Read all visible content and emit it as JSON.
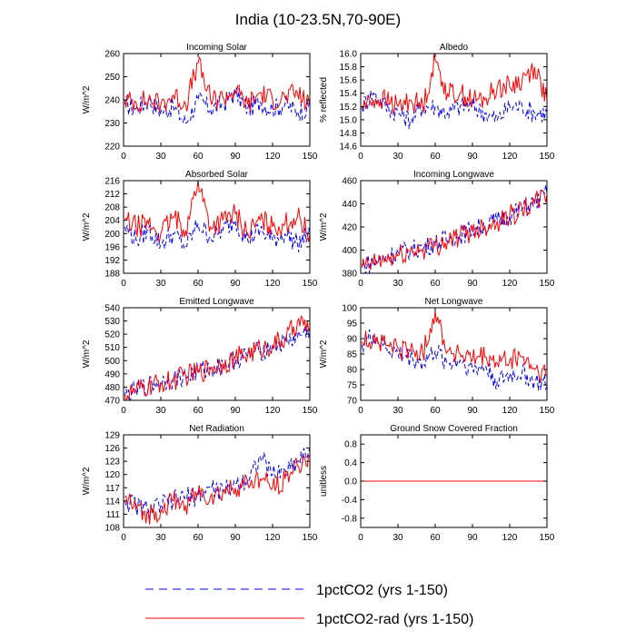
{
  "figure": {
    "title": "India (10-23.5N,70-90E)"
  },
  "series_styles": [
    {
      "name": "1pctCO2 (yrs 1-150)",
      "color": "#0000ff",
      "dash": "dashed"
    },
    {
      "name": "1pctCO2-rad (yrs 1-150)",
      "color": "#ff0000",
      "dash": "solid"
    }
  ],
  "legend": [
    {
      "label": "1pctCO2 (yrs 1-150)",
      "color": "#0000ff",
      "dash": "dashed"
    },
    {
      "label": "1pctCO2-rad (yrs 1-150)",
      "color": "#ff0000",
      "dash": "solid"
    }
  ],
  "chart_data": [
    {
      "type": "line",
      "title": "Incoming Solar",
      "ylabel": "W/m^2",
      "xlim": [
        0,
        150
      ],
      "ylim": [
        220,
        260
      ],
      "xticks": [
        0,
        30,
        60,
        90,
        120,
        150
      ],
      "xtick_labels": [
        "0",
        "30",
        "60",
        "90",
        "120",
        "150"
      ],
      "yticks": [
        220,
        230,
        240,
        250,
        260
      ],
      "ytick_labels": [
        "220",
        "230",
        "240",
        "250",
        "260"
      ],
      "series": [
        {
          "color": "#0000ff",
          "dash": "dashed",
          "x": [
            1,
            10,
            20,
            30,
            40,
            50,
            60,
            70,
            80,
            90,
            100,
            110,
            120,
            130,
            140,
            150
          ],
          "values": [
            238,
            236,
            240,
            235,
            237,
            230,
            240,
            236,
            238,
            243,
            236,
            239,
            236,
            238,
            235,
            236
          ]
        },
        {
          "color": "#ff0000",
          "dash": "solid",
          "x": [
            1,
            10,
            20,
            30,
            40,
            50,
            60,
            70,
            80,
            90,
            100,
            110,
            120,
            130,
            140,
            150
          ],
          "values": [
            240,
            239,
            240,
            238,
            242,
            238,
            256,
            240,
            241,
            244,
            238,
            243,
            240,
            241,
            243,
            237
          ]
        }
      ]
    },
    {
      "type": "line",
      "title": "Albedo",
      "ylabel": "% reflected",
      "xlim": [
        0,
        150
      ],
      "ylim": [
        14.6,
        16.0
      ],
      "xticks": [
        0,
        30,
        60,
        90,
        120,
        150
      ],
      "xtick_labels": [
        "0",
        "30",
        "60",
        "90",
        "120",
        "150"
      ],
      "yticks": [
        14.6,
        14.8,
        15.0,
        15.2,
        15.4,
        15.6,
        15.8,
        16.0
      ],
      "ytick_labels": [
        "14.6",
        "14.8",
        "15.0",
        "15.2",
        "15.4",
        "15.6",
        "15.8",
        "16.0"
      ],
      "series": [
        {
          "color": "#0000ff",
          "dash": "dashed",
          "x": [
            1,
            10,
            20,
            30,
            40,
            50,
            60,
            70,
            80,
            90,
            100,
            110,
            120,
            130,
            140,
            150
          ],
          "values": [
            15.2,
            15.4,
            15.2,
            15.1,
            15.0,
            15.2,
            15.2,
            15.1,
            15.2,
            15.2,
            15.1,
            15.0,
            15.2,
            15.2,
            15.1,
            15.1
          ]
        },
        {
          "color": "#ff0000",
          "dash": "solid",
          "x": [
            1,
            10,
            20,
            30,
            40,
            50,
            60,
            70,
            80,
            90,
            100,
            110,
            120,
            130,
            140,
            150
          ],
          "values": [
            15.2,
            15.3,
            15.3,
            15.2,
            15.3,
            15.2,
            15.9,
            15.4,
            15.4,
            15.3,
            15.3,
            15.5,
            15.5,
            15.6,
            15.8,
            15.3
          ]
        }
      ]
    },
    {
      "type": "line",
      "title": "Absorbed Solar",
      "ylabel": "W/m^2",
      "xlim": [
        0,
        150
      ],
      "ylim": [
        188,
        216
      ],
      "xticks": [
        0,
        30,
        60,
        90,
        120,
        150
      ],
      "xtick_labels": [
        "0",
        "30",
        "60",
        "90",
        "120",
        "150"
      ],
      "yticks": [
        188,
        192,
        196,
        200,
        204,
        208,
        212,
        216
      ],
      "ytick_labels": [
        "188",
        "192",
        "196",
        "200",
        "204",
        "208",
        "212",
        "216"
      ],
      "series": [
        {
          "color": "#0000ff",
          "dash": "dashed",
          "x": [
            1,
            10,
            20,
            30,
            40,
            50,
            60,
            70,
            80,
            90,
            100,
            110,
            120,
            130,
            140,
            150
          ],
          "values": [
            202,
            198,
            201,
            197,
            200,
            196,
            203,
            199,
            201,
            204,
            198,
            201,
            198,
            200,
            197,
            200
          ]
        },
        {
          "color": "#ff0000",
          "dash": "solid",
          "x": [
            1,
            10,
            20,
            30,
            40,
            50,
            60,
            70,
            80,
            90,
            100,
            110,
            120,
            130,
            140,
            150
          ],
          "values": [
            204,
            202,
            203,
            200,
            205,
            201,
            216,
            202,
            204,
            206,
            200,
            204,
            202,
            203,
            205,
            200
          ]
        }
      ]
    },
    {
      "type": "line",
      "title": "Incoming Longwave",
      "ylabel": "W/m^2",
      "xlim": [
        0,
        150
      ],
      "ylim": [
        380,
        460
      ],
      "xticks": [
        0,
        30,
        60,
        90,
        120,
        150
      ],
      "xtick_labels": [
        "0",
        "30",
        "60",
        "90",
        "120",
        "150"
      ],
      "yticks": [
        380,
        400,
        420,
        440,
        460
      ],
      "ytick_labels": [
        "380",
        "400",
        "420",
        "440",
        "460"
      ],
      "series": [
        {
          "color": "#0000ff",
          "dash": "dashed",
          "x": [
            1,
            10,
            20,
            30,
            40,
            50,
            60,
            70,
            80,
            90,
            100,
            110,
            120,
            130,
            140,
            150
          ],
          "values": [
            386,
            390,
            394,
            398,
            400,
            403,
            406,
            409,
            413,
            418,
            421,
            426,
            430,
            435,
            441,
            449
          ]
        },
        {
          "color": "#ff0000",
          "dash": "solid",
          "x": [
            1,
            10,
            20,
            30,
            40,
            50,
            60,
            70,
            80,
            90,
            100,
            110,
            120,
            130,
            140,
            150
          ],
          "values": [
            385,
            388,
            392,
            395,
            399,
            401,
            404,
            408,
            412,
            417,
            421,
            425,
            430,
            435,
            440,
            448
          ]
        }
      ]
    },
    {
      "type": "line",
      "title": "Emitted Longwave",
      "ylabel": "W/m^2",
      "xlim": [
        0,
        150
      ],
      "ylim": [
        470,
        540
      ],
      "xticks": [
        0,
        30,
        60,
        90,
        120,
        150
      ],
      "xtick_labels": [
        "0",
        "30",
        "60",
        "90",
        "120",
        "150"
      ],
      "yticks": [
        470,
        480,
        490,
        500,
        510,
        520,
        530,
        540
      ],
      "ytick_labels": [
        "470",
        "480",
        "490",
        "500",
        "510",
        "520",
        "530",
        "540"
      ],
      "series": [
        {
          "color": "#0000ff",
          "dash": "dashed",
          "x": [
            1,
            10,
            20,
            30,
            40,
            50,
            60,
            70,
            80,
            90,
            100,
            110,
            120,
            130,
            140,
            150
          ],
          "values": [
            473,
            478,
            481,
            484,
            486,
            488,
            492,
            494,
            497,
            501,
            504,
            507,
            511,
            514,
            518,
            524
          ]
        },
        {
          "color": "#ff0000",
          "dash": "solid",
          "x": [
            1,
            10,
            20,
            30,
            40,
            50,
            60,
            70,
            80,
            90,
            100,
            110,
            120,
            130,
            140,
            150
          ],
          "values": [
            474,
            477,
            480,
            483,
            485,
            489,
            491,
            495,
            498,
            502,
            505,
            509,
            512,
            516,
            529,
            525
          ]
        }
      ]
    },
    {
      "type": "line",
      "title": "Net Longwave",
      "ylabel": "W/m^2",
      "xlim": [
        0,
        150
      ],
      "ylim": [
        70,
        100
      ],
      "xticks": [
        0,
        30,
        60,
        90,
        120,
        150
      ],
      "xtick_labels": [
        "0",
        "30",
        "60",
        "90",
        "120",
        "150"
      ],
      "yticks": [
        70,
        75,
        80,
        85,
        90,
        95,
        100
      ],
      "ytick_labels": [
        "70",
        "75",
        "80",
        "85",
        "90",
        "95",
        "100"
      ],
      "series": [
        {
          "color": "#0000ff",
          "dash": "dashed",
          "x": [
            1,
            10,
            20,
            30,
            40,
            50,
            60,
            70,
            80,
            90,
            100,
            110,
            120,
            130,
            140,
            150
          ],
          "values": [
            88,
            91,
            87,
            85,
            84,
            82,
            86,
            82,
            83,
            80,
            81,
            76,
            78,
            79,
            76,
            75
          ]
        },
        {
          "color": "#ff0000",
          "dash": "solid",
          "x": [
            1,
            10,
            20,
            30,
            40,
            50,
            60,
            70,
            80,
            90,
            100,
            110,
            120,
            130,
            140,
            150
          ],
          "values": [
            89,
            90,
            88,
            87,
            86,
            85,
            99,
            86,
            85,
            83,
            84,
            82,
            83,
            84,
            80,
            78
          ]
        }
      ]
    },
    {
      "type": "line",
      "title": "Net Radiation",
      "ylabel": "W/m^2",
      "xlim": [
        0,
        150
      ],
      "ylim": [
        108,
        129
      ],
      "xticks": [
        0,
        30,
        60,
        90,
        120,
        150
      ],
      "xtick_labels": [
        "0",
        "30",
        "60",
        "90",
        "120",
        "150"
      ],
      "yticks": [
        108,
        111,
        114,
        117,
        120,
        123,
        126,
        129
      ],
      "ytick_labels": [
        "108",
        "111",
        "114",
        "117",
        "120",
        "123",
        "126",
        "129"
      ],
      "series": [
        {
          "color": "#0000ff",
          "dash": "dashed",
          "x": [
            1,
            10,
            20,
            30,
            40,
            50,
            60,
            70,
            80,
            90,
            100,
            110,
            120,
            130,
            140,
            150
          ],
          "values": [
            114,
            113,
            112,
            113,
            114,
            115,
            115,
            117,
            116,
            118,
            119,
            124,
            120,
            121,
            123,
            126
          ]
        },
        {
          "color": "#ff0000",
          "dash": "solid",
          "x": [
            1,
            10,
            20,
            30,
            40,
            50,
            60,
            70,
            80,
            90,
            100,
            110,
            120,
            130,
            140,
            150
          ],
          "values": [
            115,
            112,
            111,
            112,
            114,
            113,
            116,
            115,
            116,
            117,
            118,
            119,
            117,
            119,
            122,
            124
          ]
        }
      ]
    },
    {
      "type": "line",
      "title": "Ground Snow Covered Fraction",
      "ylabel": "unitless",
      "xlim": [
        0,
        150
      ],
      "ylim": [
        -1.0,
        1.0
      ],
      "xticks": [
        0,
        30,
        60,
        90,
        120,
        150
      ],
      "xtick_labels": [
        "0",
        "30",
        "60",
        "90",
        "120",
        "150"
      ],
      "yticks": [
        -0.8,
        -0.4,
        0.0,
        0.4,
        0.8
      ],
      "ytick_labels": [
        "-0.8",
        "-0.4",
        "0.0",
        "0.4",
        "0.8"
      ],
      "series": [
        {
          "color": "#0000ff",
          "dash": "dashed",
          "x": [
            1,
            150
          ],
          "values": [
            0,
            0
          ]
        },
        {
          "color": "#ff0000",
          "dash": "solid",
          "x": [
            1,
            150
          ],
          "values": [
            0,
            0
          ]
        }
      ]
    }
  ]
}
